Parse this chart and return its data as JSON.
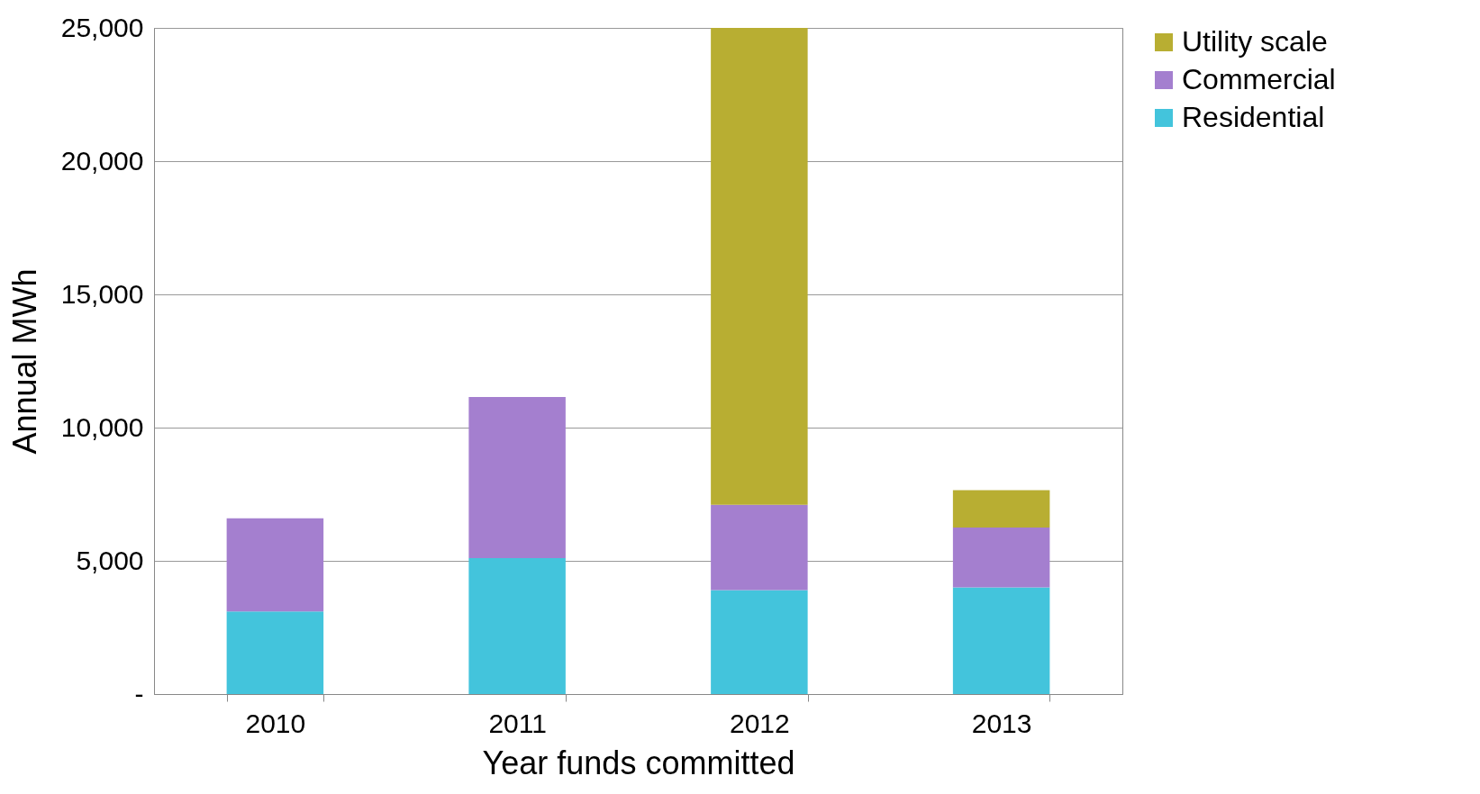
{
  "chart_data": {
    "type": "bar",
    "stacked": true,
    "xlabel": "Year funds committed",
    "ylabel": "Annual MWh",
    "categories": [
      "2010",
      "2011",
      "2012",
      "2013"
    ],
    "series": [
      {
        "name": "Residential",
        "color": "#43c4dc",
        "values": [
          3100,
          5100,
          3900,
          4000
        ]
      },
      {
        "name": "Commercial",
        "color": "#a47fcf",
        "values": [
          3500,
          6050,
          3200,
          2250
        ]
      },
      {
        "name": "Utility scale",
        "color": "#b8ae32",
        "values": [
          null,
          null,
          17900,
          1400
        ]
      }
    ],
    "ylim": [
      0,
      25000
    ],
    "yticks": [
      {
        "value": 0,
        "label": "-"
      },
      {
        "value": 5000,
        "label": "5,000"
      },
      {
        "value": 10000,
        "label": "10,000"
      },
      {
        "value": 15000,
        "label": "15,000"
      },
      {
        "value": 20000,
        "label": "20,000"
      },
      {
        "value": 25000,
        "label": "25,000"
      }
    ],
    "grid": "y",
    "legend": "right"
  }
}
